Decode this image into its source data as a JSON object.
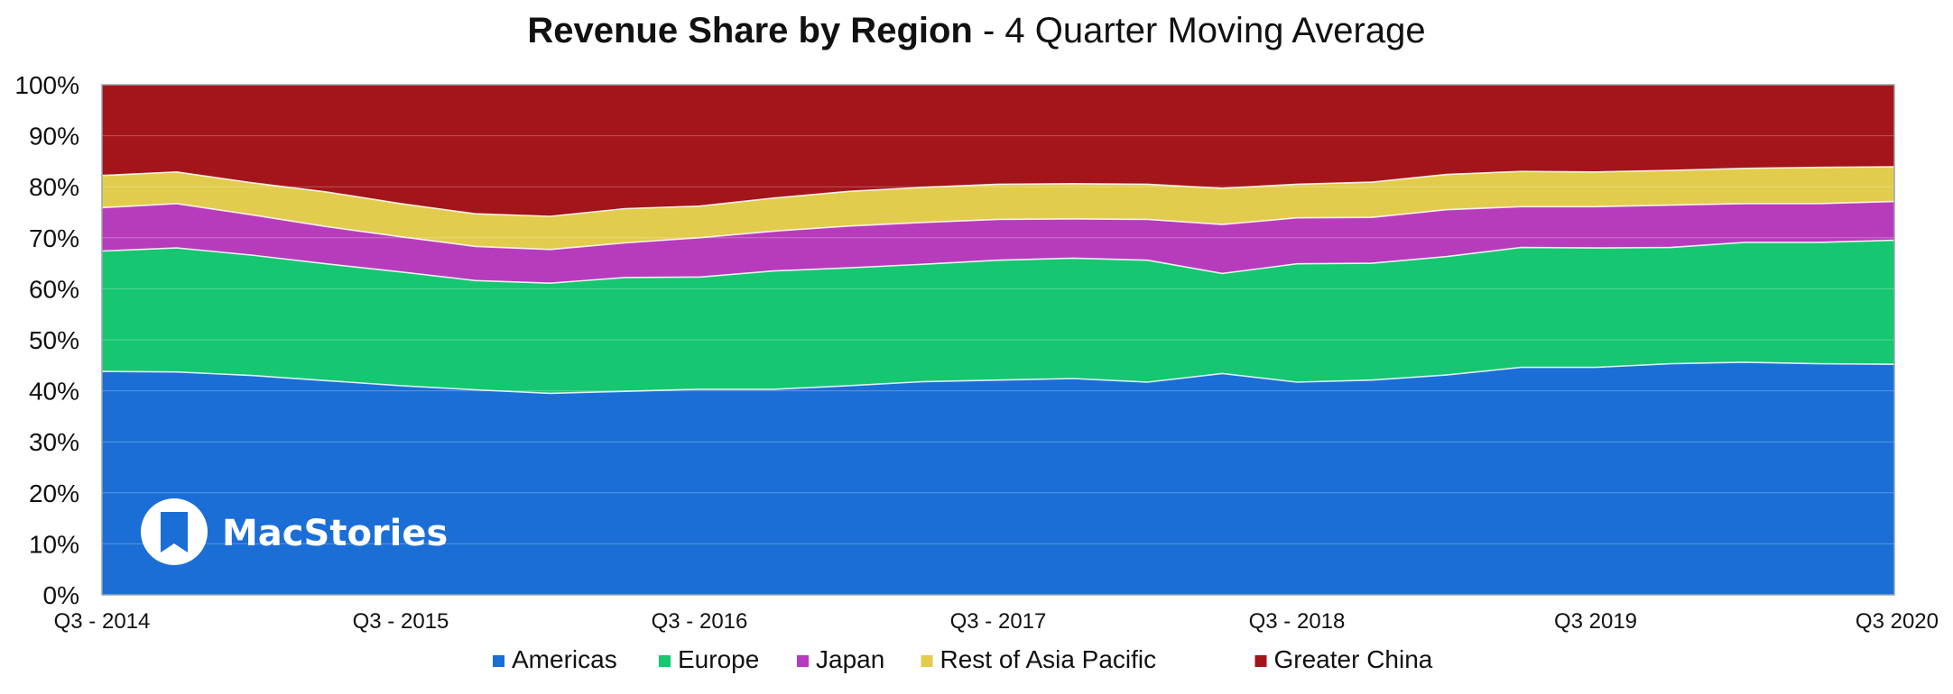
{
  "chart_data": {
    "type": "area",
    "stacked": true,
    "normalized_percent": true,
    "title": "Revenue Share by Region",
    "subtitle": "4 Quarter Moving Average",
    "title_separator": " - ",
    "xlabel": "",
    "ylabel": "",
    "ylim": [
      0,
      100
    ],
    "y_ticks": [
      "0%",
      "10%",
      "20%",
      "30%",
      "40%",
      "50%",
      "60%",
      "70%",
      "80%",
      "90%",
      "100%"
    ],
    "x_tick_labels": [
      {
        "index": 0,
        "label": "Q3 - 2014"
      },
      {
        "index": 4,
        "label": "Q3 - 2015"
      },
      {
        "index": 8,
        "label": "Q3 - 2016"
      },
      {
        "index": 12,
        "label": "Q3 - 2017"
      },
      {
        "index": 16,
        "label": "Q3 - 2018"
      },
      {
        "index": 20,
        "label": "Q3 2019"
      },
      {
        "index": 24,
        "label": "Q3 2020"
      }
    ],
    "categories": [
      "Q3 2014",
      "Q4 2014",
      "Q1 2015",
      "Q2 2015",
      "Q3 2015",
      "Q4 2015",
      "Q1 2016",
      "Q2 2016",
      "Q3 2016",
      "Q4 2016",
      "Q1 2017",
      "Q2 2017",
      "Q3 2017",
      "Q4 2017",
      "Q1 2018",
      "Q2 2018",
      "Q3 2018",
      "Q4 2018",
      "Q1 2019",
      "Q2 2019",
      "Q3 2019",
      "Q4 2019",
      "Q1 2020",
      "Q2 2020",
      "Q3 2020"
    ],
    "grid": true,
    "legend_position": "bottom",
    "series": [
      {
        "name": "Americas",
        "color": "#1b6ed6",
        "values": [
          43.8,
          43.7,
          43.0,
          42.0,
          41.0,
          40.2,
          39.5,
          39.9,
          40.3,
          40.3,
          41.0,
          41.8,
          42.1,
          42.4,
          41.7,
          43.4,
          41.7,
          42.1,
          43.1,
          44.6,
          44.6,
          45.3,
          45.6,
          45.3,
          45.2
        ]
      },
      {
        "name": "Europe",
        "color": "#16c670",
        "values": [
          23.6,
          24.3,
          23.6,
          22.9,
          22.3,
          21.4,
          21.6,
          22.3,
          22.0,
          23.2,
          23.1,
          23.0,
          23.5,
          23.6,
          23.9,
          19.6,
          23.2,
          22.9,
          23.2,
          23.5,
          23.4,
          22.8,
          23.5,
          23.8,
          24.3
        ]
      },
      {
        "name": "Japan",
        "color": "#b73cbc",
        "values": [
          8.5,
          8.7,
          7.9,
          7.3,
          6.9,
          6.7,
          6.6,
          6.8,
          7.7,
          7.8,
          8.2,
          8.2,
          8.0,
          7.7,
          8.0,
          9.6,
          9.0,
          9.0,
          9.2,
          8.0,
          8.1,
          8.3,
          7.6,
          7.6,
          7.6
        ]
      },
      {
        "name": "Rest of Asia Pacific",
        "color": "#e2cc4d",
        "values": [
          6.3,
          6.2,
          6.3,
          6.8,
          6.5,
          6.4,
          6.5,
          6.7,
          6.2,
          6.5,
          6.8,
          6.9,
          6.9,
          6.9,
          6.9,
          7.1,
          6.6,
          6.9,
          6.9,
          6.9,
          6.8,
          6.8,
          6.9,
          7.1,
          6.8
        ]
      },
      {
        "name": "Greater China",
        "color": "#a3141b",
        "values": [
          17.8,
          17.1,
          19.2,
          21.0,
          23.3,
          25.3,
          25.8,
          24.3,
          23.8,
          22.2,
          20.9,
          20.1,
          19.5,
          19.4,
          19.5,
          20.3,
          19.5,
          19.1,
          17.6,
          17.0,
          17.1,
          16.8,
          16.4,
          16.2,
          16.1
        ]
      }
    ]
  },
  "watermark": {
    "text": "MacStories",
    "icon": "bookmark-icon"
  }
}
